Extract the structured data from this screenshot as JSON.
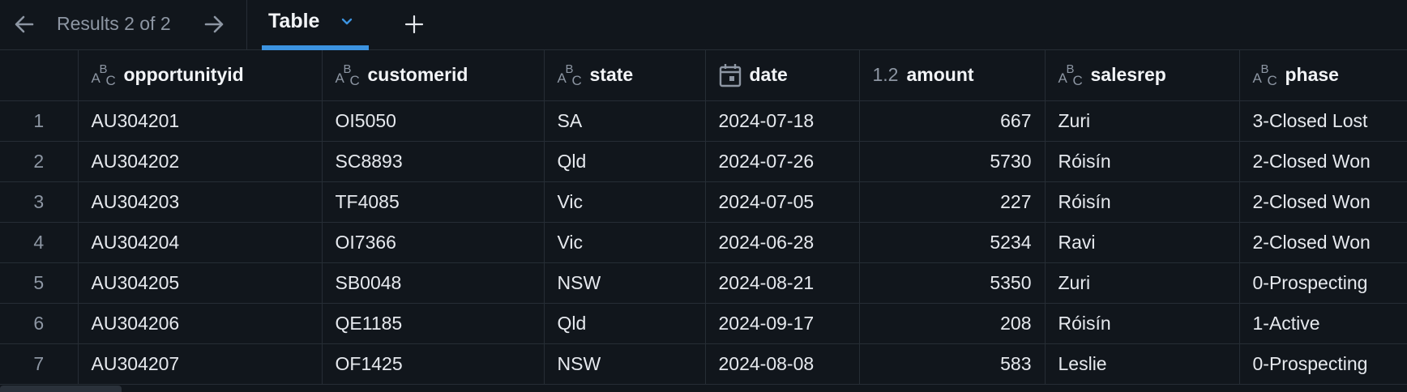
{
  "nav": {
    "results_text": "Results 2 of 2",
    "prev_icon": "arrow-left-icon",
    "next_icon": "arrow-right-icon"
  },
  "tabs": [
    {
      "label": "Table",
      "active": true
    }
  ],
  "add_tab_icon": "plus-icon",
  "colors": {
    "background": "#11161c",
    "accent": "#3c93e0",
    "muted_text": "#8d96a3",
    "grid_line": "#262d35"
  },
  "table": {
    "columns": [
      {
        "label": "opportunityid",
        "type": "text",
        "type_icon": "abc-type-icon"
      },
      {
        "label": "customerid",
        "type": "text",
        "type_icon": "abc-type-icon"
      },
      {
        "label": "state",
        "type": "text",
        "type_icon": "abc-type-icon"
      },
      {
        "label": "date",
        "type": "date",
        "type_icon": "calendar-icon"
      },
      {
        "label": "amount",
        "type": "number",
        "type_icon": "decimal-type-icon",
        "type_text": "1.2"
      },
      {
        "label": "salesrep",
        "type": "text",
        "type_icon": "abc-type-icon"
      },
      {
        "label": "phase",
        "type": "text",
        "type_icon": "abc-type-icon"
      }
    ],
    "rows": [
      {
        "index": "1",
        "opportunityid": "AU304201",
        "customerid": "OI5050",
        "state": "SA",
        "date": "2024-07-18",
        "amount": "667",
        "salesrep": "Zuri",
        "phase": "3-Closed Lost"
      },
      {
        "index": "2",
        "opportunityid": "AU304202",
        "customerid": "SC8893",
        "state": "Qld",
        "date": "2024-07-26",
        "amount": "5730",
        "salesrep": "Róisín",
        "phase": "2-Closed Won"
      },
      {
        "index": "3",
        "opportunityid": "AU304203",
        "customerid": "TF4085",
        "state": "Vic",
        "date": "2024-07-05",
        "amount": "227",
        "salesrep": "Róisín",
        "phase": "2-Closed Won"
      },
      {
        "index": "4",
        "opportunityid": "AU304204",
        "customerid": "OI7366",
        "state": "Vic",
        "date": "2024-06-28",
        "amount": "5234",
        "salesrep": "Ravi",
        "phase": "2-Closed Won"
      },
      {
        "index": "5",
        "opportunityid": "AU304205",
        "customerid": "SB0048",
        "state": "NSW",
        "date": "2024-08-21",
        "amount": "5350",
        "salesrep": "Zuri",
        "phase": "0-Prospecting"
      },
      {
        "index": "6",
        "opportunityid": "AU304206",
        "customerid": "QE1185",
        "state": "Qld",
        "date": "2024-09-17",
        "amount": "208",
        "salesrep": "Róisín",
        "phase": "1-Active"
      },
      {
        "index": "7",
        "opportunityid": "AU304207",
        "customerid": "OF1425",
        "state": "NSW",
        "date": "2024-08-08",
        "amount": "583",
        "salesrep": "Leslie",
        "phase": "0-Prospecting"
      }
    ]
  }
}
